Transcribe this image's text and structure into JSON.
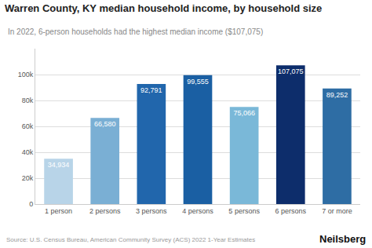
{
  "chart_data": {
    "type": "bar",
    "title": "Warren County, KY median household income, by household size",
    "subtitle": "In 2022, 6-person households had the highest median income ($107,075)",
    "categories": [
      "1 person",
      "2 persons",
      "3 persons",
      "4 persons",
      "5 persons",
      "6 persons",
      "7 or more"
    ],
    "values": [
      34934,
      66580,
      92791,
      99555,
      75066,
      107075,
      89252
    ],
    "value_labels": [
      "34,934",
      "66,580",
      "92,791",
      "99,555",
      "75,066",
      "107,075",
      "89,252"
    ],
    "colors": [
      "#b8d4e8",
      "#7aafd4",
      "#2166ac",
      "#1a5fa3",
      "#7ab8d8",
      "#0d2d6b",
      "#2e6da4"
    ],
    "data_labels": true,
    "ylim": [
      0,
      120000
    ],
    "yticks": [
      0,
      {
        "value": 20000,
        "label": "20k"
      },
      {
        "value": 40000,
        "label": "40k"
      },
      {
        "value": 60000,
        "label": "60k"
      },
      {
        "value": 80000,
        "label": "80k"
      },
      {
        "value": 100000,
        "label": "100k"
      }
    ],
    "grid": true,
    "annotations": [
      "Source: U.S. Census Bureau, American Community Survey (ACS) 2022 1-Year Estimates",
      "Neilsberg"
    ]
  }
}
